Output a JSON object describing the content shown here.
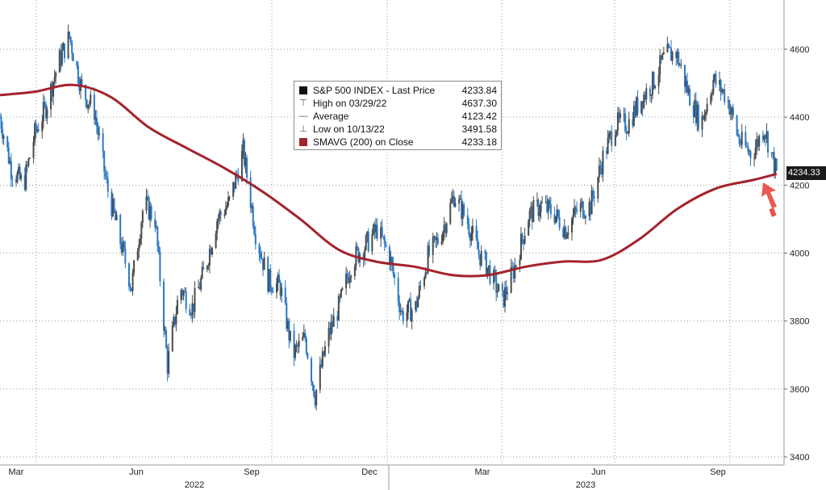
{
  "legend": {
    "rows": [
      {
        "icon": "black-square-icon",
        "label": "S&P 500 INDEX - Last Price",
        "value": "4233.84",
        "color": "#111111"
      },
      {
        "icon": "high-marker-icon",
        "label": "High on 03/29/22",
        "value": "4637.30",
        "color": "#555555"
      },
      {
        "icon": "average-marker-icon",
        "label": "Average",
        "value": "4123.42",
        "color": "#555555"
      },
      {
        "icon": "low-marker-icon",
        "label": "Low on 10/13/22",
        "value": "3491.58",
        "color": "#555555"
      },
      {
        "icon": "red-square-icon",
        "label": "SMAVG (200)  on Close",
        "value": "4233.18",
        "color": "#a3232c"
      }
    ]
  },
  "last_price_tag": "4234.33",
  "colors": {
    "candle_up": "#4a4a4a",
    "candle_down": "#2b78c5",
    "sma": "#a3232c",
    "grid": "#9a9a9a",
    "arrow": "#e8504a"
  },
  "chart_data": {
    "type": "line",
    "title": "",
    "xlabel": "",
    "ylabel": "",
    "ylim": [
      3400,
      4700
    ],
    "y_ticks": [
      3400,
      3600,
      3800,
      4000,
      4200,
      4400,
      4600
    ],
    "x_month_labels": [
      {
        "label": "Mar",
        "date": "2022-03"
      },
      {
        "label": "Jun",
        "date": "2022-06"
      },
      {
        "label": "Sep",
        "date": "2022-09"
      },
      {
        "label": "Dec",
        "date": "2022-12"
      },
      {
        "label": "Mar",
        "date": "2023-03"
      },
      {
        "label": "Jun",
        "date": "2023-06"
      },
      {
        "label": "Sep",
        "date": "2023-09"
      }
    ],
    "x_year_labels": [
      {
        "label": "2022",
        "date": "2022-07"
      },
      {
        "label": "2023",
        "date": "2023-05"
      }
    ],
    "series": [
      {
        "name": "S&P 500 INDEX - Last Price",
        "points": [
          [
            "2022-02-01",
            4400
          ],
          [
            "2022-02-10",
            4250
          ],
          [
            "2022-02-20",
            4200
          ],
          [
            "2022-03-01",
            4350
          ],
          [
            "2022-03-10",
            4430
          ],
          [
            "2022-03-20",
            4560
          ],
          [
            "2022-03-29",
            4637
          ],
          [
            "2022-04-08",
            4480
          ],
          [
            "2022-04-18",
            4420
          ],
          [
            "2022-04-28",
            4200
          ],
          [
            "2022-05-08",
            4050
          ],
          [
            "2022-05-18",
            3900
          ],
          [
            "2022-05-28",
            4150
          ],
          [
            "2022-06-06",
            4100
          ],
          [
            "2022-06-16",
            3670
          ],
          [
            "2022-06-26",
            3900
          ],
          [
            "2022-07-06",
            3840
          ],
          [
            "2022-07-16",
            3950
          ],
          [
            "2022-07-26",
            4100
          ],
          [
            "2022-08-05",
            4150
          ],
          [
            "2022-08-16",
            4300
          ],
          [
            "2022-08-26",
            4060
          ],
          [
            "2022-09-05",
            3920
          ],
          [
            "2022-09-15",
            3900
          ],
          [
            "2022-09-25",
            3700
          ],
          [
            "2022-10-05",
            3750
          ],
          [
            "2022-10-13",
            3580
          ],
          [
            "2022-10-23",
            3750
          ],
          [
            "2022-11-02",
            3850
          ],
          [
            "2022-11-12",
            3980
          ],
          [
            "2022-11-22",
            4020
          ],
          [
            "2022-12-02",
            4070
          ],
          [
            "2022-12-12",
            3990
          ],
          [
            "2022-12-22",
            3820
          ],
          [
            "2023-01-02",
            3840
          ],
          [
            "2023-01-12",
            3990
          ],
          [
            "2023-01-22",
            4050
          ],
          [
            "2023-02-02",
            4170
          ],
          [
            "2023-02-12",
            4100
          ],
          [
            "2023-02-22",
            4000
          ],
          [
            "2023-03-02",
            3950
          ],
          [
            "2023-03-13",
            3860
          ],
          [
            "2023-03-23",
            3960
          ],
          [
            "2023-04-03",
            4110
          ],
          [
            "2023-04-13",
            4140
          ],
          [
            "2023-04-23",
            4120
          ],
          [
            "2023-05-03",
            4070
          ],
          [
            "2023-05-13",
            4130
          ],
          [
            "2023-05-23",
            4140
          ],
          [
            "2023-06-02",
            4280
          ],
          [
            "2023-06-12",
            4380
          ],
          [
            "2023-06-22",
            4380
          ],
          [
            "2023-07-02",
            4450
          ],
          [
            "2023-07-12",
            4500
          ],
          [
            "2023-07-22",
            4580
          ],
          [
            "2023-07-31",
            4590
          ],
          [
            "2023-08-10",
            4470
          ],
          [
            "2023-08-20",
            4380
          ],
          [
            "2023-08-30",
            4510
          ],
          [
            "2023-09-10",
            4460
          ],
          [
            "2023-09-20",
            4330
          ],
          [
            "2023-09-30",
            4290
          ],
          [
            "2023-10-10",
            4370
          ],
          [
            "2023-10-20",
            4234
          ]
        ]
      },
      {
        "name": "SMAVG (200)  on Close",
        "points": [
          [
            "2022-02-01",
            4465
          ],
          [
            "2022-03-01",
            4475
          ],
          [
            "2022-04-01",
            4495
          ],
          [
            "2022-05-01",
            4460
          ],
          [
            "2022-06-01",
            4370
          ],
          [
            "2022-07-01",
            4310
          ],
          [
            "2022-08-01",
            4250
          ],
          [
            "2022-09-01",
            4180
          ],
          [
            "2022-10-01",
            4100
          ],
          [
            "2022-11-01",
            4010
          ],
          [
            "2022-12-01",
            3975
          ],
          [
            "2023-01-01",
            3960
          ],
          [
            "2023-02-01",
            3935
          ],
          [
            "2023-03-01",
            3935
          ],
          [
            "2023-04-01",
            3960
          ],
          [
            "2023-05-01",
            3975
          ],
          [
            "2023-06-01",
            3980
          ],
          [
            "2023-07-01",
            4040
          ],
          [
            "2023-08-01",
            4130
          ],
          [
            "2023-09-01",
            4190
          ],
          [
            "2023-10-01",
            4215
          ],
          [
            "2023-10-20",
            4233
          ]
        ]
      }
    ],
    "grid": true,
    "legend_position": "top-center"
  }
}
